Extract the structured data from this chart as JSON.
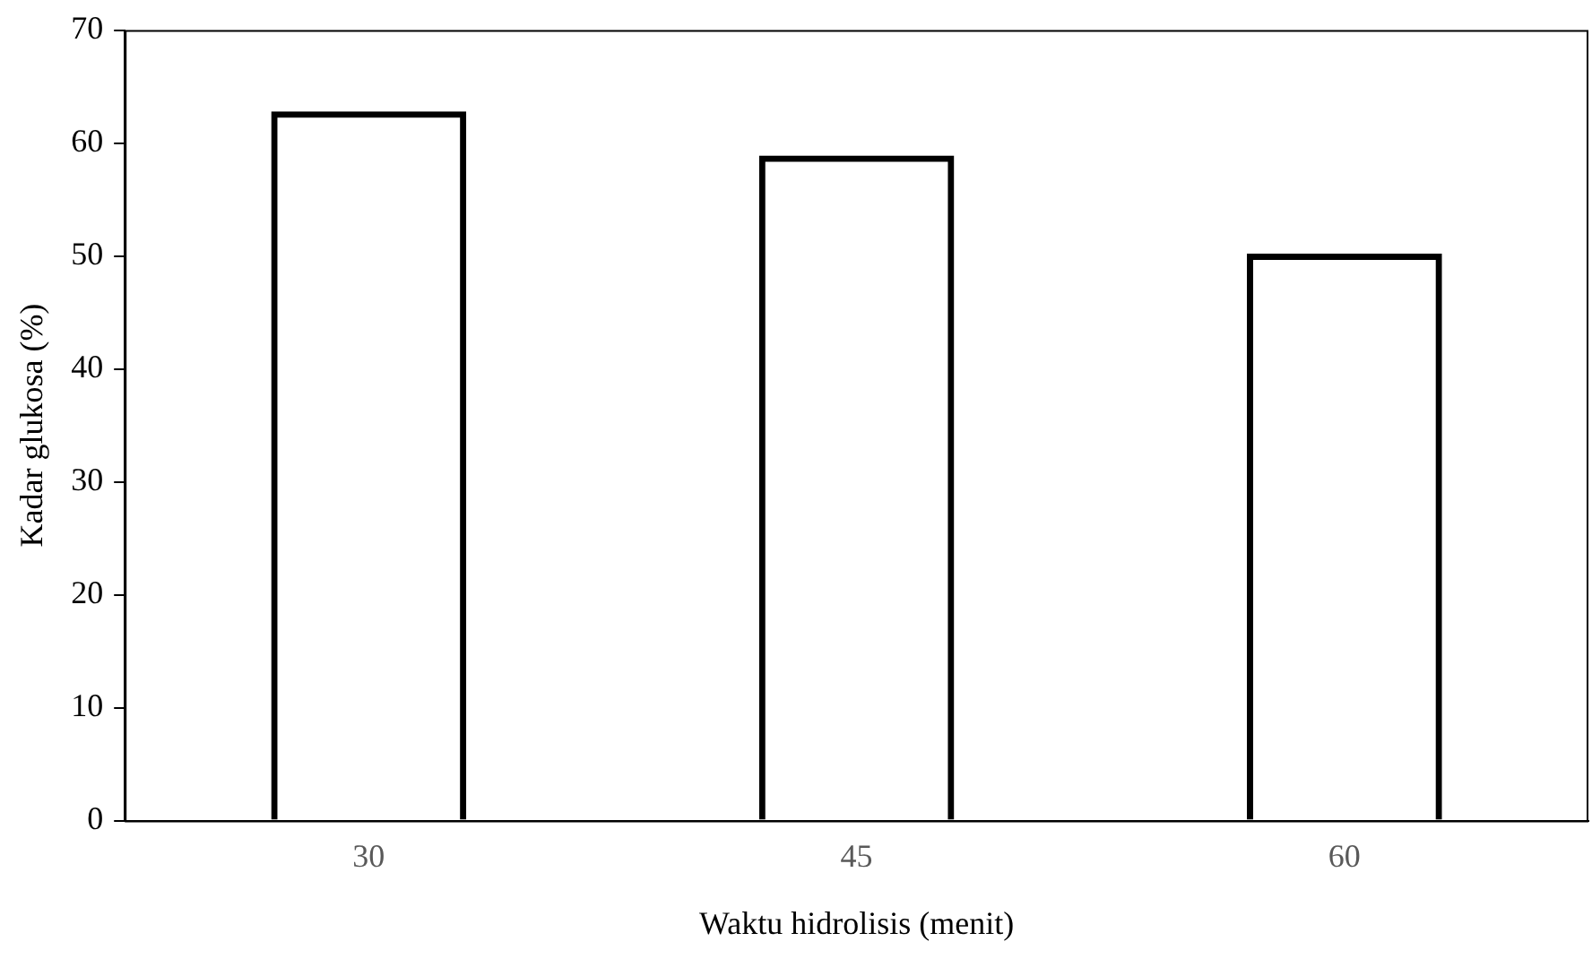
{
  "chart_data": {
    "type": "bar",
    "xlabel": "Waktu hidrolisis (menit)",
    "ylabel": "Kadar glukosa (%)",
    "categories": [
      "30",
      "45",
      "60"
    ],
    "values": [
      62.8,
      58.9,
      50.2
    ],
    "color": "#000000",
    "ylim": [
      0,
      70
    ],
    "yticks": [
      0,
      10,
      20,
      30,
      40,
      50,
      60,
      70
    ],
    "grid": false,
    "legend": false
  }
}
